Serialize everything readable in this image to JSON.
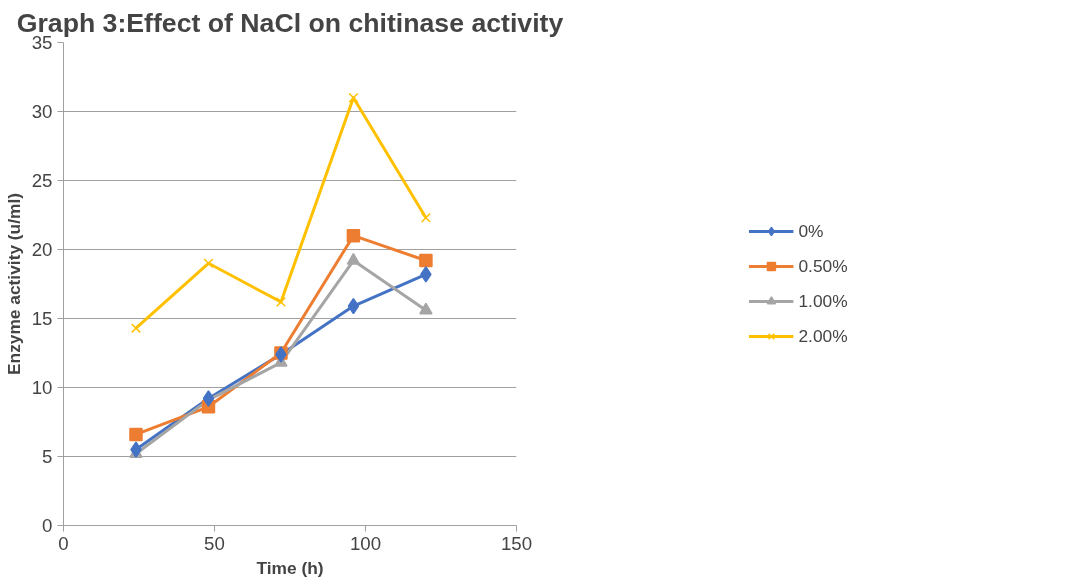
{
  "chart_data": {
    "type": "line",
    "title": "Graph 3:Effect of NaCl on chitinase activity",
    "xlabel": "Time (h)",
    "ylabel": "Enzyme activity (u/ml)",
    "x": [
      24,
      48,
      72,
      96,
      120
    ],
    "series": [
      {
        "name": "0%",
        "color": "#4472c4",
        "marker": "diamond",
        "values": [
          5.5,
          9.2,
          12.4,
          15.9,
          18.2
        ]
      },
      {
        "name": "0.50%",
        "color": "#ed7d31",
        "marker": "square",
        "values": [
          6.6,
          8.6,
          12.5,
          21.0,
          19.2
        ]
      },
      {
        "name": "1.00%",
        "color": "#a5a5a5",
        "marker": "triangle",
        "values": [
          5.2,
          9.1,
          11.8,
          19.2,
          15.6
        ]
      },
      {
        "name": "2.00%",
        "color": "#ffc000",
        "marker": "cross",
        "values": [
          14.3,
          19.0,
          16.2,
          31.0,
          22.3
        ]
      }
    ],
    "xlim": [
      0,
      150
    ],
    "xticks": [
      0,
      50,
      100,
      150
    ],
    "ylim": [
      0,
      35
    ],
    "yticks": [
      0,
      5,
      10,
      15,
      20,
      25,
      30,
      35
    ],
    "grid": "y",
    "legend": "right"
  }
}
